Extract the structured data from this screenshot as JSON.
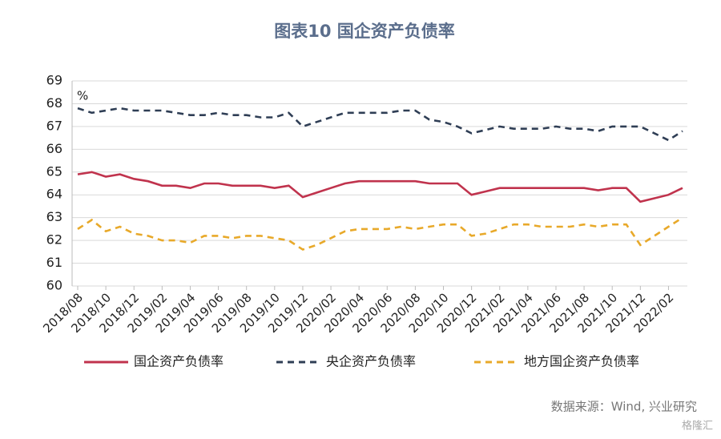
{
  "chart_data": {
    "type": "line",
    "title": "图表10  国企资产负债率",
    "y_unit": "%",
    "source": "数据来源：Wind, 兴业研究",
    "watermark": "格隆汇",
    "categories": [
      "2018/08",
      null,
      "2018/10",
      null,
      "2018/12",
      null,
      "2019/02",
      null,
      "2019/04",
      null,
      "2019/06",
      null,
      "2019/08",
      null,
      "2019/10",
      null,
      "2019/12",
      null,
      "2020/02",
      null,
      "2020/04",
      null,
      "2020/06",
      null,
      "2020/08",
      null,
      "2020/10",
      null,
      "2020/12",
      null,
      "2021/02",
      null,
      "2021/04",
      null,
      "2021/06",
      null,
      "2021/08",
      null,
      "2021/10",
      null,
      "2021/12",
      null,
      "2022/02",
      null
    ],
    "series": [
      {
        "name": "国企资产负债率",
        "color": "#c0334d",
        "dash": "solid",
        "values": [
          64.9,
          65.0,
          64.8,
          64.9,
          64.7,
          64.6,
          64.4,
          64.4,
          64.3,
          64.5,
          64.5,
          64.4,
          64.4,
          64.4,
          64.3,
          64.4,
          63.9,
          64.1,
          64.3,
          64.5,
          64.6,
          64.6,
          64.6,
          64.6,
          64.6,
          64.5,
          64.5,
          64.5,
          64.0,
          64.15,
          64.3,
          64.3,
          64.3,
          64.3,
          64.3,
          64.3,
          64.3,
          64.2,
          64.3,
          64.3,
          63.7,
          63.85,
          64.0,
          64.3
        ]
      },
      {
        "name": "央企资产负债率",
        "color": "#2f3e55",
        "dash": "dashed",
        "values": [
          67.8,
          67.6,
          67.7,
          67.8,
          67.7,
          67.7,
          67.7,
          67.6,
          67.5,
          67.5,
          67.6,
          67.5,
          67.5,
          67.4,
          67.4,
          67.6,
          67.0,
          67.2,
          67.4,
          67.6,
          67.6,
          67.6,
          67.6,
          67.7,
          67.7,
          67.3,
          67.2,
          67.0,
          66.7,
          66.85,
          67.0,
          66.9,
          66.9,
          66.9,
          67.0,
          66.9,
          66.9,
          66.8,
          67.0,
          67.0,
          67.0,
          66.7,
          66.4,
          66.8
        ]
      },
      {
        "name": "地方国企资产负债率",
        "color": "#e8a92a",
        "dash": "dashed",
        "values": [
          62.5,
          62.9,
          62.4,
          62.6,
          62.3,
          62.2,
          62.0,
          62.0,
          61.9,
          62.2,
          62.2,
          62.1,
          62.2,
          62.2,
          62.1,
          62.0,
          61.6,
          61.8,
          62.1,
          62.4,
          62.5,
          62.5,
          62.5,
          62.6,
          62.5,
          62.6,
          62.7,
          62.7,
          62.2,
          62.3,
          62.5,
          62.7,
          62.7,
          62.6,
          62.6,
          62.6,
          62.7,
          62.6,
          62.7,
          62.7,
          61.8,
          62.2,
          62.6,
          63.0
        ]
      }
    ],
    "ylim": [
      60,
      69
    ],
    "yticks": [
      60,
      61,
      62,
      63,
      64,
      65,
      66,
      67,
      68,
      69
    ],
    "grid": true,
    "legend": "bottom"
  }
}
